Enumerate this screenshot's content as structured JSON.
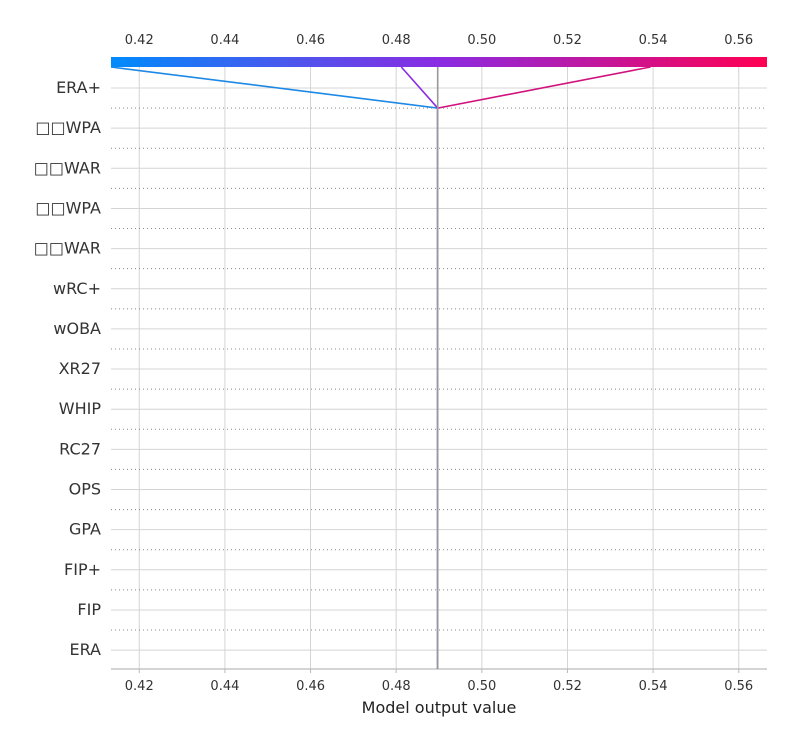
{
  "chart_data": {
    "type": "line",
    "title": "",
    "xlabel": "Model output value",
    "ylabel": "",
    "xlim": [
      0.4134,
      0.5666
    ],
    "x_ticks": [
      "0.42",
      "0.44",
      "0.46",
      "0.48",
      "0.50",
      "0.52",
      "0.54",
      "0.56"
    ],
    "features": [
      "ERA+",
      "□□WPA",
      "□□WAR",
      "□□WPA",
      "□□WAR",
      "wRC+",
      "wOBA",
      "XR27",
      "WHIP",
      "RC27",
      "OPS",
      "GPA",
      "FIP+",
      "FIP",
      "ERA"
    ],
    "base_value": 0.4897,
    "grid": true,
    "colorbar": {
      "position": "top",
      "low_color": "#008bfb",
      "mid_color": "#8a2be2",
      "high_color": "#ff0052"
    },
    "series": [
      {
        "color": "#1e88e5",
        "values": [
          0.4897,
          0.4897,
          0.4897,
          0.4897,
          0.4897,
          0.4897,
          0.4897,
          0.4897,
          0.4897,
          0.4897,
          0.4897,
          0.4897,
          0.4897,
          0.4897,
          0.4897,
          0.4134
        ]
      },
      {
        "color": "#d1117d",
        "values": [
          0.4897,
          0.4897,
          0.4897,
          0.4897,
          0.4897,
          0.4897,
          0.4897,
          0.4897,
          0.4897,
          0.4897,
          0.4897,
          0.4897,
          0.4897,
          0.4897,
          0.4897,
          0.5394
        ]
      },
      {
        "color": "#8a2be2",
        "values": [
          0.4897,
          0.4897,
          0.4897,
          0.4897,
          0.4897,
          0.4897,
          0.4897,
          0.4897,
          0.4897,
          0.4897,
          0.4897,
          0.4897,
          0.4897,
          0.4897,
          0.4897,
          0.4812
        ]
      },
      {
        "color": "#999999",
        "values": [
          0.4897,
          0.4897,
          0.4897,
          0.4897,
          0.4897,
          0.4897,
          0.4897,
          0.4897,
          0.4897,
          0.4897,
          0.4897,
          0.4897,
          0.4897,
          0.4897,
          0.4897,
          0.4897
        ]
      }
    ]
  }
}
